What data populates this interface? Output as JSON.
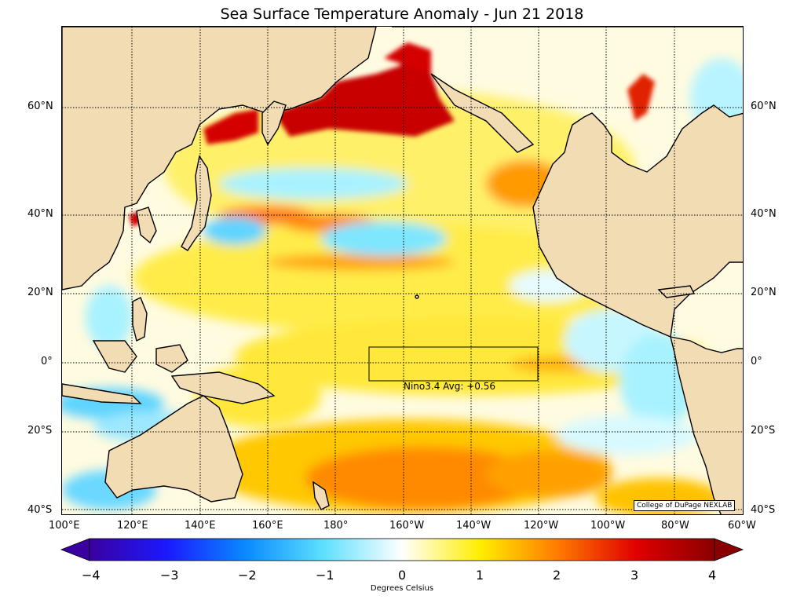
{
  "title": "Sea Surface Temperature Anomaly - Jun 21 2018",
  "latitude_labels": [
    "60°N",
    "40°N",
    "20°N",
    "0°",
    "20°S",
    "40°S"
  ],
  "longitude_labels": [
    "100°E",
    "120°E",
    "140°E",
    "160°E",
    "180°",
    "160°W",
    "140°W",
    "120°W",
    "100°W",
    "80°W",
    "60°W"
  ],
  "nino_box_label": "Nino3.4 Avg: +0.56",
  "credit": "College of DuPage NEXLAB",
  "colorbar": {
    "ticks": [
      "−4",
      "−3",
      "−2",
      "−1",
      "0",
      "1",
      "2",
      "3",
      "4"
    ],
    "label": "Degrees Celsius",
    "min": -4,
    "max": 4
  },
  "colors": {
    "land": "#f2dcb4",
    "ocean_neutral": "#ffffff",
    "warm_strong": "#b30000",
    "warm": "#ff6a00",
    "warm_light": "#ffe000",
    "cool_light": "#a8f2ff",
    "cool": "#21b8ff",
    "cool_strong": "#3a00b0"
  }
}
